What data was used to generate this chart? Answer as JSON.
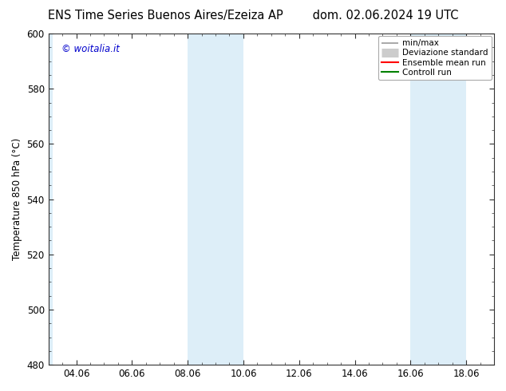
{
  "title_left": "ENS Time Series Buenos Aires/Ezeiza AP",
  "title_right": "dom. 02.06.2024 19 UTC",
  "ylabel": "Temperature 850 hPa (°C)",
  "ylim": [
    480,
    600
  ],
  "yticks": [
    480,
    500,
    520,
    540,
    560,
    580,
    600
  ],
  "xtick_labels": [
    "04.06",
    "06.06",
    "08.06",
    "10.06",
    "12.06",
    "14.06",
    "16.06",
    "18.06"
  ],
  "xtick_positions": [
    1.0,
    3.0,
    5.0,
    7.0,
    9.0,
    11.0,
    13.0,
    15.0
  ],
  "xlim": [
    0.0,
    16.0
  ],
  "shaded_regions": [
    {
      "xmin": 0.0,
      "xmax": 0.15
    },
    {
      "xmin": 5.0,
      "xmax": 7.0
    },
    {
      "xmin": 13.0,
      "xmax": 15.0
    }
  ],
  "shaded_color": "#ddeef8",
  "background_color": "#ffffff",
  "plot_bg_color": "#ffffff",
  "watermark_text": "© woitalia.it",
  "watermark_color": "#0000cc",
  "legend_items": [
    {
      "label": "min/max",
      "color": "#aaaaaa",
      "lw": 1.2
    },
    {
      "label": "Deviazione standard",
      "color": "#cccccc",
      "lw": 6
    },
    {
      "label": "Ensemble mean run",
      "color": "#ff0000",
      "lw": 1.5
    },
    {
      "label": "Controll run",
      "color": "#008000",
      "lw": 1.5
    }
  ],
  "title_fontsize": 10.5,
  "tick_fontsize": 8.5,
  "ylabel_fontsize": 8.5,
  "watermark_fontsize": 8.5
}
